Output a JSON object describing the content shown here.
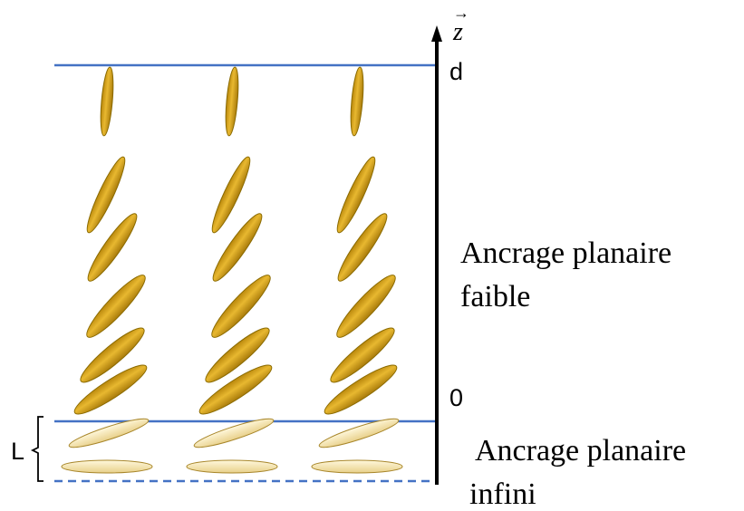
{
  "axis": {
    "label": "z",
    "top_label": "d",
    "zero_label": "0"
  },
  "thickness_label": "L",
  "regions": {
    "weak": [
      "Ancrage planaire",
      "faible"
    ],
    "infinite": [
      "Ancrage planaire",
      "infini"
    ]
  },
  "colors": {
    "boundary_line": "#4472C4",
    "axis": "#000000",
    "molecule_fill": "#D4A017",
    "molecule_stroke": "#8A6A00",
    "surface_molecule_fill": "#F3E6B0",
    "surface_molecule_stroke": "#A8862A"
  }
}
